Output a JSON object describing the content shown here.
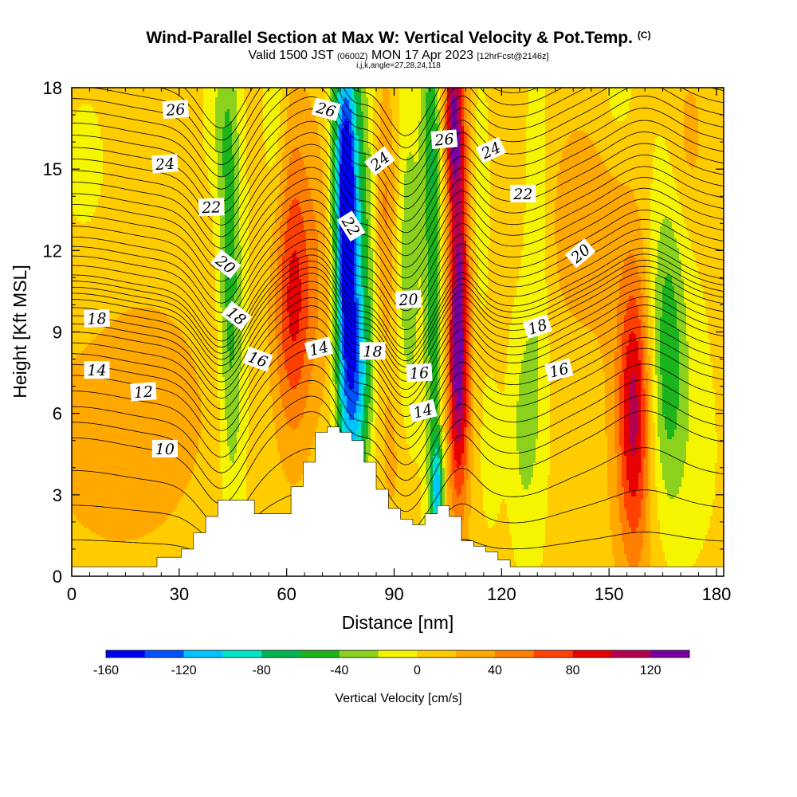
{
  "header": {
    "title": "Wind-Parallel Section at Max W: Vertical Velocity & Pot.Temp.",
    "title_mark": "(C)",
    "valid_prefix": "Valid 1500 JST",
    "valid_utc": "(0600Z)",
    "valid_date": "MON 17 Apr 2023",
    "forecast": "[12hrFcst@2146z]",
    "indices": "i,j,k,angle=27,28,24,118"
  },
  "chart_data": {
    "type": "heatmap",
    "title": "Wind-Parallel Section at Max W: Vertical Velocity & Pot.Temp.",
    "xlabel": "Distance [nm]",
    "ylabel": "Height [Kft MSL]",
    "xlim": [
      0,
      182
    ],
    "ylim": [
      0,
      18
    ],
    "x_ticks": [
      "0",
      "30",
      "60",
      "90",
      "120",
      "150",
      "180"
    ],
    "y_ticks": [
      "0",
      "3",
      "6",
      "9",
      "12",
      "15",
      "18"
    ],
    "x_tick_values": [
      0,
      30,
      60,
      90,
      120,
      150,
      180
    ],
    "y_tick_values": [
      0,
      3,
      6,
      9,
      12,
      15,
      18
    ],
    "grid": false,
    "colorbar": {
      "label": "Vertical Velocity [cm/s]",
      "tick_labels": [
        "-160",
        "-120",
        "-80",
        "-40",
        "0",
        "40",
        "80",
        "120"
      ],
      "tick_values": [
        -160,
        -120,
        -80,
        -40,
        0,
        40,
        80,
        120
      ],
      "levels": [
        -160,
        -140,
        -120,
        -100,
        -80,
        -60,
        -40,
        -20,
        0,
        20,
        40,
        60,
        80,
        100,
        120,
        140
      ],
      "colors": [
        "#0000f0",
        "#0050ff",
        "#00c4ff",
        "#00e6c8",
        "#00b450",
        "#1cb41c",
        "#8cd21c",
        "#f5f500",
        "#ffcc00",
        "#ffa800",
        "#ff8000",
        "#ff4000",
        "#e60000",
        "#b40050",
        "#7800a0"
      ]
    },
    "w_field": {
      "background": 6,
      "features": [
        {
          "x": 4,
          "z": 14.5,
          "sx": 6,
          "sz": 3,
          "w": -10
        },
        {
          "x": 12,
          "z": 5,
          "sx": 18,
          "sz": 3.5,
          "w": 22
        },
        {
          "x": 25,
          "z": 8,
          "sx": 15,
          "sz": 4,
          "w": 8
        },
        {
          "x": 44,
          "z": 13,
          "sx": 2.2,
          "sz": 4.5,
          "w": -50
        },
        {
          "x": 45,
          "z": 6.5,
          "sx": 2.5,
          "sz": 4,
          "w": -30
        },
        {
          "x": 41,
          "z": 17,
          "sx": 3,
          "sz": 2,
          "w": -20
        },
        {
          "x": 52,
          "z": 9.5,
          "sx": 3,
          "sz": 5,
          "w": -6
        },
        {
          "x": 57,
          "z": 17,
          "sx": 2.2,
          "sz": 3,
          "w": -25
        },
        {
          "x": 62,
          "z": 9.8,
          "sx": 4,
          "sz": 3.5,
          "w": 70
        },
        {
          "x": 62,
          "z": 14.5,
          "sx": 4,
          "sz": 4,
          "w": 20
        },
        {
          "x": 71,
          "z": 12,
          "sx": 3,
          "sz": 4,
          "w": 25
        },
        {
          "x": 77,
          "z": 10,
          "sx": 2.4,
          "sz": 5.5,
          "w": -145
        },
        {
          "x": 76,
          "z": 15.5,
          "sx": 2.8,
          "sz": 3.5,
          "w": -90
        },
        {
          "x": 80.5,
          "z": 7,
          "sx": 2,
          "sz": 2.5,
          "w": -60
        },
        {
          "x": 83,
          "z": 12,
          "sx": 2.5,
          "sz": 5,
          "w": -40
        },
        {
          "x": 87,
          "z": 13.5,
          "sx": 2.5,
          "sz": 3.5,
          "w": 45
        },
        {
          "x": 90,
          "z": 4.5,
          "sx": 4,
          "sz": 2.5,
          "w": 20
        },
        {
          "x": 94,
          "z": 11,
          "sx": 2.5,
          "sz": 5,
          "w": -40
        },
        {
          "x": 101,
          "z": 9,
          "sx": 1.8,
          "sz": 6,
          "w": -55
        },
        {
          "x": 102,
          "z": 3.2,
          "sx": 1.2,
          "sz": 1.3,
          "w": -95
        },
        {
          "x": 100,
          "z": 16.5,
          "sx": 2,
          "sz": 3,
          "w": -40
        },
        {
          "x": 108,
          "z": 12,
          "sx": 2,
          "sz": 6,
          "w": 100
        },
        {
          "x": 108,
          "z": 7,
          "sx": 2.4,
          "sz": 3,
          "w": 55
        },
        {
          "x": 106,
          "z": 17,
          "sx": 1.6,
          "sz": 2,
          "w": 75
        },
        {
          "x": 114,
          "z": 14,
          "sx": 2,
          "sz": 3.5,
          "w": -15
        },
        {
          "x": 117,
          "z": 4.5,
          "sx": 2.2,
          "sz": 2,
          "w": -15
        },
        {
          "x": 126,
          "z": 5.5,
          "sx": 2.8,
          "sz": 3,
          "w": -30
        },
        {
          "x": 130,
          "z": 11,
          "sx": 2.5,
          "sz": 6,
          "w": -24
        },
        {
          "x": 143,
          "z": 13,
          "sx": 8,
          "sz": 3,
          "w": 28
        },
        {
          "x": 157,
          "z": 6,
          "sx": 3,
          "sz": 3.5,
          "w": 82
        },
        {
          "x": 157,
          "z": 5.5,
          "sx": 6,
          "sz": 5,
          "w": 25
        },
        {
          "x": 166,
          "z": 9,
          "sx": 3.5,
          "sz": 3.5,
          "w": -45
        },
        {
          "x": 167,
          "z": 5,
          "sx": 5,
          "sz": 3,
          "w": -25
        },
        {
          "x": 168,
          "z": 12,
          "sx": 6,
          "sz": 5,
          "w": -12
        },
        {
          "x": 152,
          "z": 17.3,
          "sx": 4,
          "sz": 1.5,
          "w": -15
        },
        {
          "x": 172,
          "z": 16,
          "sx": 4,
          "sz": 2.5,
          "w": 25
        },
        {
          "x": 178,
          "z": 4,
          "sx": 5,
          "sz": 4,
          "w": -5
        }
      ]
    },
    "potential_temperature": {
      "start": 8,
      "step": 0.5,
      "count": 40,
      "base": [
        {
          "th": 8,
          "z": 0.05
        },
        {
          "th": 10,
          "z": 4.5
        },
        {
          "th": 12,
          "z": 6.8
        },
        {
          "th": 14,
          "z": 8.4
        },
        {
          "th": 16,
          "z": 9.6
        },
        {
          "th": 18,
          "z": 10.5
        },
        {
          "th": 20,
          "z": 11.9
        },
        {
          "th": 22,
          "z": 13.5
        },
        {
          "th": 24,
          "z": 15.2
        },
        {
          "th": 26,
          "z": 17.0
        },
        {
          "th": 28,
          "z": 18.8
        }
      ],
      "perturbations": [
        {
          "x": 0,
          "sx": 14,
          "dz": 0.6,
          "kind": "g"
        },
        {
          "x": 42,
          "sx": 6,
          "dz": -1.9,
          "kind": "g"
        },
        {
          "x": 68,
          "sx": 10,
          "dz": 1.6,
          "kind": "g"
        },
        {
          "x": 78,
          "sx": 4,
          "dz": -1.2,
          "kind": "g"
        },
        {
          "x": 93,
          "sx": 6,
          "dz": -2.2,
          "kind": "g"
        },
        {
          "x": 109,
          "sx": 4,
          "dz": 0.9,
          "kind": "g"
        },
        {
          "x": 125,
          "sx": 10,
          "dz": -0.8,
          "kind": "g"
        },
        {
          "x": 158,
          "sx": 24,
          "dz": 0.7,
          "kind": "g"
        },
        {
          "x": 160,
          "sx": 8,
          "dz": 0.9,
          "kind": "g"
        }
      ]
    },
    "contour_labels": [
      {
        "text": "26",
        "x": 29,
        "z": 17.2,
        "angle": -4
      },
      {
        "text": "24",
        "x": 26,
        "z": 15.2,
        "angle": -4
      },
      {
        "text": "22",
        "x": 39,
        "z": 13.6,
        "angle": -2
      },
      {
        "text": "20",
        "x": 43,
        "z": 11.5,
        "angle": 38
      },
      {
        "text": "18",
        "x": 7,
        "z": 9.5,
        "angle": -2
      },
      {
        "text": "18",
        "x": 46,
        "z": 9.6,
        "angle": 38
      },
      {
        "text": "16",
        "x": 52,
        "z": 8,
        "angle": 20
      },
      {
        "text": "14",
        "x": 7,
        "z": 7.6,
        "angle": 0
      },
      {
        "text": "12",
        "x": 20,
        "z": 6.8,
        "angle": -4
      },
      {
        "text": "10",
        "x": 26,
        "z": 4.7,
        "angle": 0
      },
      {
        "text": "26",
        "x": 71,
        "z": 17.2,
        "angle": 15
      },
      {
        "text": "14",
        "x": 69,
        "z": 8.4,
        "angle": -14
      },
      {
        "text": "22",
        "x": 78,
        "z": 12.9,
        "angle": 58
      },
      {
        "text": "24",
        "x": 86,
        "z": 15.3,
        "angle": -38
      },
      {
        "text": "18",
        "x": 84,
        "z": 8.3,
        "angle": 0
      },
      {
        "text": "20",
        "x": 94,
        "z": 10.2,
        "angle": -3
      },
      {
        "text": "16",
        "x": 97,
        "z": 7.5,
        "angle": -3
      },
      {
        "text": "14",
        "x": 98,
        "z": 6.1,
        "angle": -14
      },
      {
        "text": "26",
        "x": 104,
        "z": 16.1,
        "angle": -5
      },
      {
        "text": "24",
        "x": 117,
        "z": 15.7,
        "angle": -25
      },
      {
        "text": "22",
        "x": 126,
        "z": 14.1,
        "angle": 0
      },
      {
        "text": "20",
        "x": 142,
        "z": 11.9,
        "angle": -40
      },
      {
        "text": "18",
        "x": 130,
        "z": 9.2,
        "angle": -18
      },
      {
        "text": "16",
        "x": 136,
        "z": 7.6,
        "angle": -14
      }
    ],
    "terrain": {
      "x": [
        0,
        3.4,
        6.8,
        10.2,
        13.6,
        17,
        20.4,
        23.8,
        27.2,
        30.6,
        34,
        37.4,
        40.8,
        44.2,
        47.6,
        51,
        54.4,
        57.8,
        61.2,
        64.6,
        68,
        71.4,
        74.8,
        78.2,
        81.6,
        85,
        88.4,
        91.8,
        95.2,
        98.6,
        102,
        105.4,
        108.8,
        112.2,
        115.6,
        119,
        122.4,
        125.8,
        129.2,
        132.6,
        136,
        139.4,
        142.8,
        146.2,
        149.6,
        153,
        156.4,
        159.8,
        163.2,
        166.6,
        170,
        173.4,
        176.8,
        180.2
      ],
      "z": [
        0.35,
        0.35,
        0.35,
        0.35,
        0.35,
        0.35,
        0.35,
        0.7,
        0.7,
        1.0,
        1.6,
        2.2,
        2.8,
        2.8,
        2.8,
        2.3,
        2.3,
        2.3,
        3.3,
        4.2,
        5.3,
        5.5,
        5.3,
        5.0,
        4.2,
        3.2,
        2.5,
        2.1,
        1.9,
        2.3,
        2.6,
        2.2,
        1.3,
        1.1,
        0.9,
        0.6,
        0.35,
        0.35,
        0.35,
        0.35,
        0.35,
        0.35,
        0.35,
        0.35,
        0.35,
        0.35,
        0.35,
        0.35,
        0.35,
        0.35,
        0.35,
        0.35,
        0.35,
        0.35
      ]
    }
  }
}
